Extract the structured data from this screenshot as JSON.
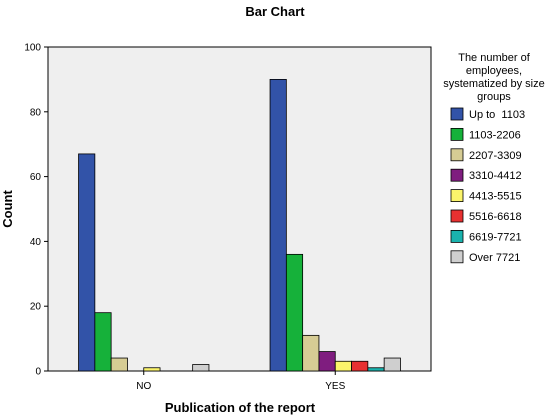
{
  "chart_data": {
    "type": "bar",
    "title": "Bar Chart",
    "xlabel": "Publication of the report",
    "ylabel": "Count",
    "ylim": [
      0,
      100
    ],
    "yticks": [
      0,
      20,
      40,
      60,
      80,
      100
    ],
    "categories": [
      "NO",
      "YES"
    ],
    "grid": false,
    "legend_position": "right",
    "legend_title": [
      "The number of",
      "employees,",
      "systematized by size",
      "groups"
    ],
    "series": [
      {
        "name": "Up to  1103",
        "color": "#3253a8",
        "values": [
          67,
          90
        ]
      },
      {
        "name": "1103-2206",
        "color": "#16b13a",
        "values": [
          18,
          36
        ]
      },
      {
        "name": "2207-3309",
        "color": "#d6cc94",
        "values": [
          4,
          11
        ]
      },
      {
        "name": "3310-4412",
        "color": "#7f1d7f",
        "values": [
          0,
          6
        ]
      },
      {
        "name": "4413-5515",
        "color": "#fbf46b",
        "values": [
          1,
          3
        ]
      },
      {
        "name": "5516-6618",
        "color": "#e83131",
        "values": [
          0,
          3
        ]
      },
      {
        "name": "6619-7721",
        "color": "#1ab3ae",
        "values": [
          0,
          1
        ]
      },
      {
        "name": "Over 7721",
        "color": "#cfcfcf",
        "values": [
          2,
          4
        ]
      }
    ]
  }
}
